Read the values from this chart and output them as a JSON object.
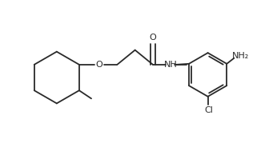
{
  "bg_color": "#ffffff",
  "bond_color": "#2a2a2a",
  "text_color": "#2a2a2a",
  "line_width": 1.3,
  "font_size": 8.0,
  "figsize": [
    3.46,
    1.89
  ],
  "dpi": 100,
  "xlim": [
    0.02,
    3.44
  ],
  "ylim": [
    0.05,
    1.84
  ]
}
